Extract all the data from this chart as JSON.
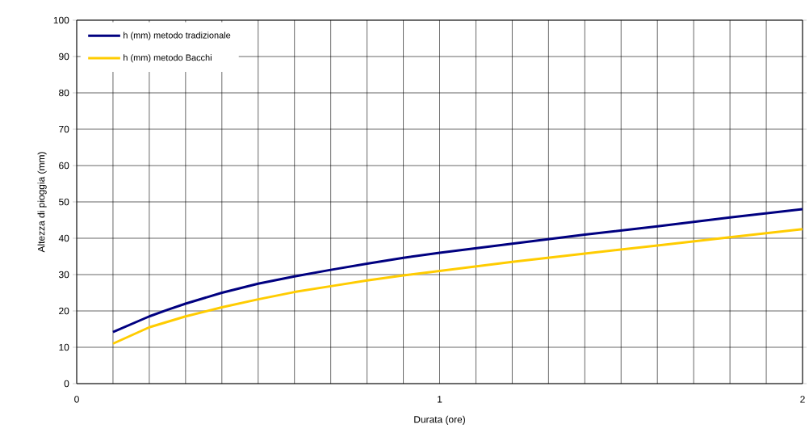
{
  "chart_data": {
    "type": "line",
    "xlabel": "Durata (ore)",
    "ylabel": "Altezza di pioggia (mm)",
    "xlim": [
      0,
      2
    ],
    "ylim": [
      0,
      100
    ],
    "xticks": [
      0,
      {
        "value": 0.1,
        "label": null
      },
      {
        "value": 0.2,
        "label": null
      },
      {
        "value": 0.3,
        "label": null
      },
      {
        "value": 0.4,
        "label": null
      },
      {
        "value": 0.5,
        "label": null
      },
      {
        "value": 0.6,
        "label": null
      },
      {
        "value": 0.7,
        "label": null
      },
      {
        "value": 0.8,
        "label": null
      },
      {
        "value": 0.9,
        "label": null
      },
      1,
      {
        "value": 1.1,
        "label": null
      },
      {
        "value": 1.2,
        "label": null
      },
      {
        "value": 1.3,
        "label": null
      },
      {
        "value": 1.4,
        "label": null
      },
      {
        "value": 1.5,
        "label": null
      },
      {
        "value": 1.6,
        "label": null
      },
      {
        "value": 1.7,
        "label": null
      },
      {
        "value": 1.8,
        "label": null
      },
      {
        "value": 1.9,
        "label": null
      },
      2
    ],
    "yticks": [
      0,
      10,
      20,
      30,
      40,
      50,
      60,
      70,
      80,
      90,
      100
    ],
    "grid": true,
    "legend": "top left",
    "marker": "none",
    "line_style": "solid",
    "x": [
      0.1,
      0.2,
      0.25,
      0.3,
      0.4,
      0.5,
      0.6,
      0.7,
      0.8,
      0.9,
      1.0,
      1.2,
      1.4,
      1.6,
      1.8,
      2.0
    ],
    "series": [
      {
        "name": "h (mm)  metodo tradizionale",
        "color": "#000080",
        "values": [
          14.2,
          18.5,
          20.3,
          22,
          25,
          27.5,
          29.5,
          31.3,
          33,
          34.6,
          36,
          38.5,
          41,
          43.3,
          45.7,
          48
        ]
      },
      {
        "name": "h (mm)  metodo Bacchi",
        "color": "#ffcc00",
        "values": [
          11,
          15.5,
          17,
          18.5,
          21,
          23.2,
          25.2,
          26.8,
          28.4,
          29.8,
          31,
          33.5,
          35.8,
          38,
          40.3,
          42.5
        ]
      }
    ]
  }
}
